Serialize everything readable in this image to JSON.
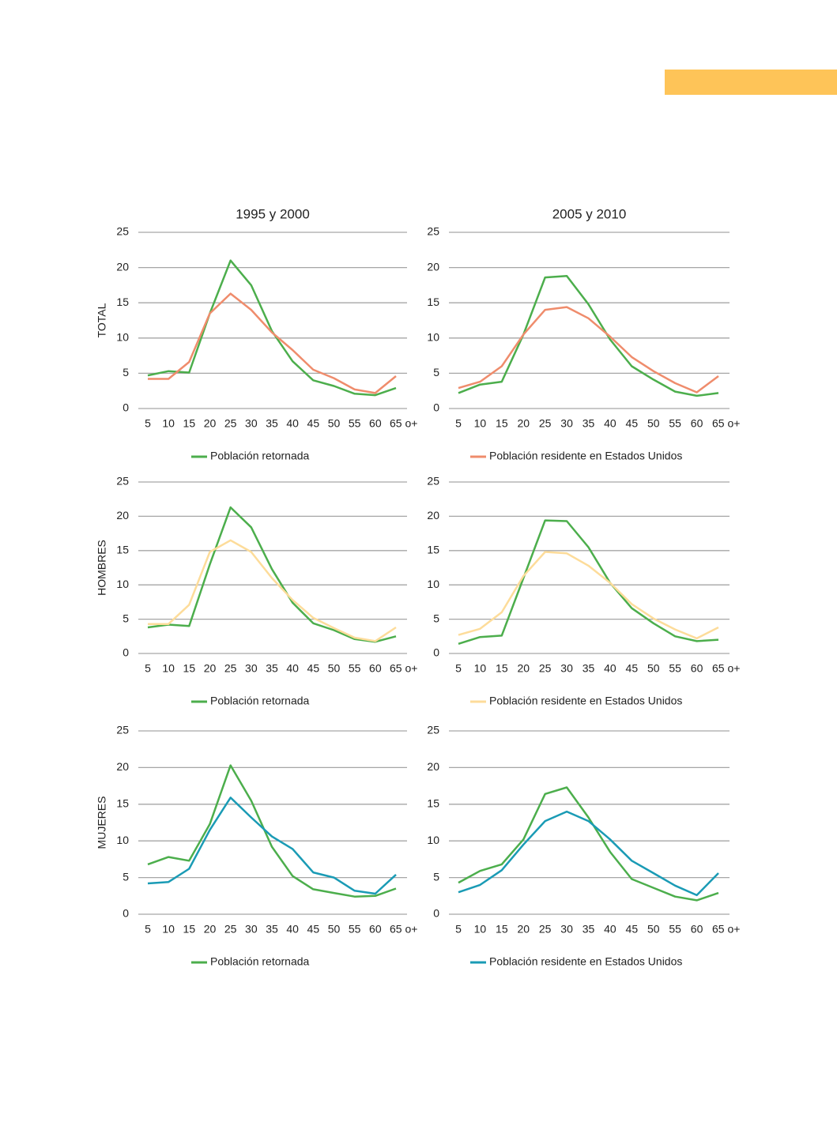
{
  "chart_data": [
    {
      "type": "line",
      "title": "1995 y 2000",
      "ylabel": "TOTAL",
      "categories": [
        "5",
        "10",
        "15",
        "20",
        "25",
        "30",
        "35",
        "40",
        "45",
        "50",
        "55",
        "60",
        "65 o+"
      ],
      "series": [
        {
          "name": "Población retornada",
          "color": "#4cae4c",
          "values": [
            4.7,
            5.3,
            5.1,
            13.5,
            21,
            17.5,
            11,
            6.7,
            4,
            3.2,
            2.1,
            1.9,
            2.9
          ]
        },
        {
          "color": "#ef8c6c",
          "values": [
            4.2,
            4.2,
            6.6,
            13.5,
            16.3,
            14,
            10.8,
            8.3,
            5.5,
            4.3,
            2.7,
            2.2,
            4.6
          ]
        }
      ],
      "ylim": [
        0,
        25
      ],
      "yticks": [
        0,
        5,
        10,
        15,
        20,
        25
      ],
      "grid": true
    },
    {
      "type": "line",
      "title": "2005 y 2010",
      "categories": [
        "5",
        "10",
        "15",
        "20",
        "25",
        "30",
        "35",
        "40",
        "45",
        "50",
        "55",
        "60",
        "65 o+"
      ],
      "series": [
        {
          "color": "#4cae4c",
          "values": [
            2.2,
            3.4,
            3.8,
            10.5,
            18.6,
            18.8,
            14.8,
            9.8,
            6,
            4.1,
            2.4,
            1.8,
            2.2
          ]
        },
        {
          "name": "Población residente en Estados Unidos",
          "color": "#ef8c6c",
          "values": [
            2.9,
            3.8,
            6,
            10.5,
            14,
            14.4,
            12.8,
            10.2,
            7.3,
            5.3,
            3.6,
            2.3,
            4.6
          ]
        }
      ],
      "ylim": [
        0,
        25
      ],
      "yticks": [
        0,
        5,
        10,
        15,
        20,
        25
      ],
      "grid": true
    },
    {
      "type": "line",
      "ylabel": "HOMBRES",
      "categories": [
        "5",
        "10",
        "15",
        "20",
        "25",
        "30",
        "35",
        "40",
        "45",
        "50",
        "55",
        "60",
        "65 o+"
      ],
      "series": [
        {
          "name": "Población retornada",
          "color": "#4cae4c",
          "values": [
            3.8,
            4.2,
            4,
            13,
            21.3,
            18.4,
            12.3,
            7.4,
            4.4,
            3.4,
            2.1,
            1.7,
            2.5
          ]
        },
        {
          "color": "#fddc9a",
          "values": [
            4.3,
            4.3,
            7.1,
            14.8,
            16.5,
            14.8,
            11,
            7.8,
            5.2,
            3.7,
            2.3,
            1.8,
            3.8
          ]
        }
      ],
      "ylim": [
        0,
        25
      ],
      "yticks": [
        0,
        5,
        10,
        15,
        20,
        25
      ],
      "grid": true
    },
    {
      "type": "line",
      "categories": [
        "5",
        "10",
        "15",
        "20",
        "25",
        "30",
        "35",
        "40",
        "45",
        "50",
        "55",
        "60",
        "65 o+"
      ],
      "series": [
        {
          "color": "#4cae4c",
          "values": [
            1.4,
            2.4,
            2.6,
            11,
            19.4,
            19.3,
            15.5,
            10.3,
            6.6,
            4.4,
            2.5,
            1.8,
            2
          ]
        },
        {
          "name": "Población residente en Estados Unidos",
          "color": "#fddc9a",
          "values": [
            2.7,
            3.6,
            6,
            11.3,
            14.8,
            14.6,
            12.8,
            10.3,
            7.2,
            5.1,
            3.5,
            2.2,
            3.8
          ]
        }
      ],
      "ylim": [
        0,
        25
      ],
      "yticks": [
        0,
        5,
        10,
        15,
        20,
        25
      ],
      "grid": true
    },
    {
      "type": "line",
      "ylabel": "MUJERES",
      "categories": [
        "5",
        "10",
        "15",
        "20",
        "25",
        "30",
        "35",
        "40",
        "45",
        "50",
        "55",
        "60",
        "65 o+"
      ],
      "series": [
        {
          "name": "Población retornada",
          "color": "#4cae4c",
          "values": [
            6.8,
            7.8,
            7.3,
            12.3,
            20.3,
            15.5,
            9.2,
            5.2,
            3.4,
            2.9,
            2.4,
            2.5,
            3.5
          ]
        },
        {
          "color": "#1a9bb5",
          "values": [
            4.2,
            4.4,
            6.2,
            11.5,
            15.9,
            13.2,
            10.6,
            8.9,
            5.7,
            5,
            3.2,
            2.8,
            5.4
          ]
        }
      ],
      "ylim": [
        0,
        25
      ],
      "yticks": [
        0,
        5,
        10,
        15,
        20,
        25
      ],
      "grid": true
    },
    {
      "type": "line",
      "categories": [
        "5",
        "10",
        "15",
        "20",
        "25",
        "30",
        "35",
        "40",
        "45",
        "50",
        "55",
        "60",
        "65 o+"
      ],
      "series": [
        {
          "color": "#4cae4c",
          "values": [
            4.3,
            5.9,
            6.8,
            10.2,
            16.4,
            17.3,
            13.2,
            8.5,
            4.8,
            3.6,
            2.4,
            1.9,
            2.9
          ]
        },
        {
          "name": "Población residente en Estados Unidos",
          "color": "#1a9bb5",
          "values": [
            3,
            4,
            6,
            9.5,
            12.7,
            14,
            12.7,
            10.2,
            7.3,
            5.6,
            3.9,
            2.6,
            5.6
          ]
        }
      ],
      "ylim": [
        0,
        25
      ],
      "yticks": [
        0,
        5,
        10,
        15,
        20,
        25
      ],
      "grid": true
    }
  ]
}
